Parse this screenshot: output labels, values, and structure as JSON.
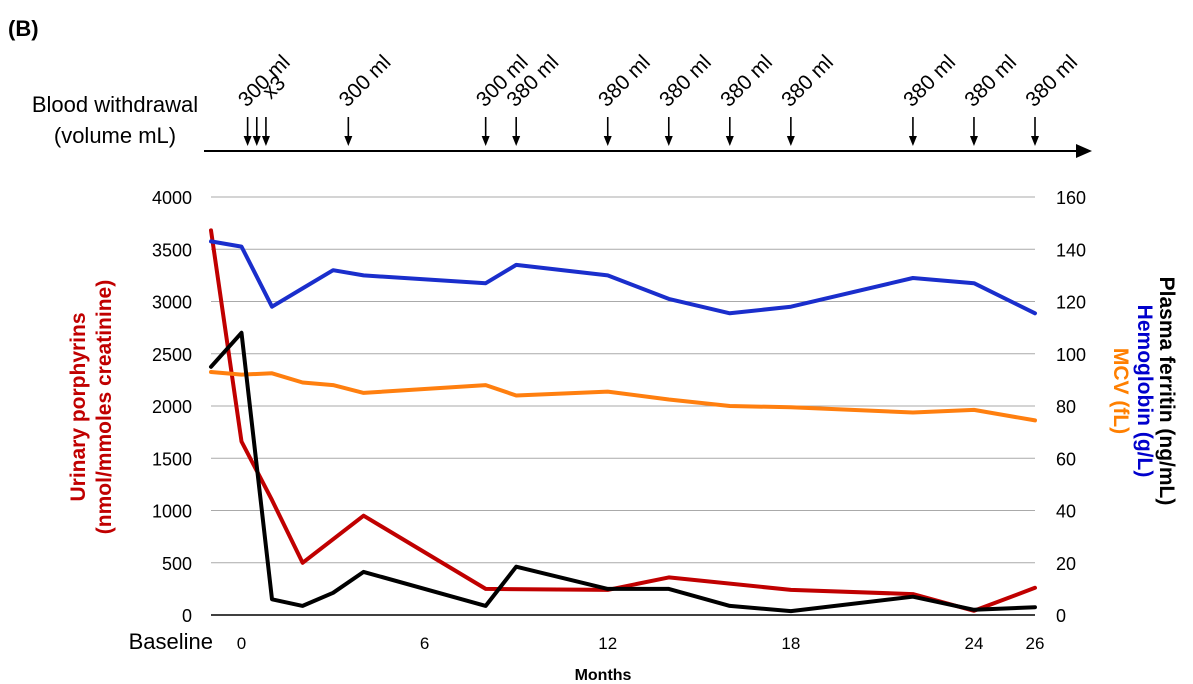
{
  "panel_label": "(B)",
  "withdrawal_header": {
    "line1": "Blood withdrawal",
    "line2": "(volume mL)"
  },
  "withdrawal_events": [
    {
      "month": 0.2,
      "label": "300 ml"
    },
    {
      "month": 0.5,
      "label": ""
    },
    {
      "month": 0.8,
      "label": "x3"
    },
    {
      "month": 3.5,
      "label": "300 ml"
    },
    {
      "month": 8.0,
      "label": "300 ml"
    },
    {
      "month": 9.0,
      "label": "380 ml"
    },
    {
      "month": 12.0,
      "label": "380 ml"
    },
    {
      "month": 14.0,
      "label": "380 ml"
    },
    {
      "month": 16.0,
      "label": "380 ml"
    },
    {
      "month": 18.0,
      "label": "380 ml"
    },
    {
      "month": 22.0,
      "label": "380 ml"
    },
    {
      "month": 24.0,
      "label": "380 ml"
    },
    {
      "month": 26.0,
      "label": "380 ml"
    }
  ],
  "chart_data": {
    "type": "line",
    "xlabel": "Months",
    "x_tick_labels": [
      {
        "x": -1,
        "label": "Baseline"
      },
      {
        "x": 0,
        "label": "0"
      },
      {
        "x": 6,
        "label": "6"
      },
      {
        "x": 12,
        "label": "12"
      },
      {
        "x": 18,
        "label": "18"
      },
      {
        "x": 24,
        "label": "24"
      },
      {
        "x": 26,
        "label": "26"
      }
    ],
    "xlim": [
      -1,
      26
    ],
    "y_left": {
      "label_line1": "Urinary porphyrins",
      "label_line2": "(nmol/mmoles creatinine)",
      "ylim": [
        0,
        4000
      ],
      "ticks": [
        0,
        500,
        1000,
        1500,
        2000,
        2500,
        3000,
        3500,
        4000
      ]
    },
    "y_right": {
      "labels": [
        {
          "text": "Plasma ferritin (ng/mL)",
          "color": "#000000"
        },
        {
          "text": "Hemoglobin (g/L)",
          "color": "#0000cc"
        },
        {
          "text": "MCV (fL)",
          "color": "#ff7f00"
        }
      ],
      "ylim": [
        0,
        160
      ],
      "ticks": [
        0,
        20,
        40,
        60,
        80,
        100,
        120,
        140,
        160
      ]
    },
    "grid": true,
    "series": [
      {
        "name": "Urinary porphyrins",
        "axis": "left",
        "color": "#c00000",
        "points": [
          [
            -1,
            3680
          ],
          [
            0,
            1660
          ],
          [
            1,
            1100
          ],
          [
            2,
            500
          ],
          [
            4,
            950
          ],
          [
            8,
            250
          ],
          [
            12,
            240
          ],
          [
            14,
            360
          ],
          [
            18,
            240
          ],
          [
            22,
            200
          ],
          [
            24,
            40
          ],
          [
            26,
            260
          ]
        ]
      },
      {
        "name": "Hemoglobin",
        "axis": "right",
        "color": "#1a2ecc",
        "points": [
          [
            -1,
            143
          ],
          [
            0,
            141
          ],
          [
            1,
            118
          ],
          [
            2,
            125
          ],
          [
            3,
            132
          ],
          [
            4,
            130
          ],
          [
            8,
            127
          ],
          [
            9,
            134
          ],
          [
            12,
            130
          ],
          [
            14,
            121
          ],
          [
            16,
            115.5
          ],
          [
            18,
            118
          ],
          [
            22,
            129
          ],
          [
            24,
            127
          ],
          [
            26,
            115.5
          ]
        ]
      },
      {
        "name": "MCV",
        "axis": "right",
        "color": "#ff7f0f",
        "points": [
          [
            -1,
            93
          ],
          [
            0,
            92
          ],
          [
            1,
            92.5
          ],
          [
            2,
            89
          ],
          [
            3,
            88
          ],
          [
            4,
            85
          ],
          [
            8,
            88
          ],
          [
            9,
            84
          ],
          [
            12,
            85.5
          ],
          [
            14,
            82.5
          ],
          [
            16,
            80
          ],
          [
            18,
            79.5
          ],
          [
            22,
            77.5
          ],
          [
            24,
            78.5
          ],
          [
            26,
            74.5
          ]
        ]
      },
      {
        "name": "Plasma ferritin",
        "axis": "right",
        "color": "#000000",
        "points": [
          [
            -1,
            95
          ],
          [
            0,
            108
          ],
          [
            1,
            6
          ],
          [
            2,
            3.5
          ],
          [
            3,
            8.5
          ],
          [
            4,
            16.5
          ],
          [
            8,
            3.5
          ],
          [
            9,
            18.5
          ],
          [
            12,
            10
          ],
          [
            14,
            10
          ],
          [
            16,
            3.5
          ],
          [
            18,
            1.5
          ],
          [
            22,
            7
          ],
          [
            24,
            2
          ],
          [
            26,
            3
          ]
        ]
      }
    ]
  },
  "colors": {
    "grid": "#aaaaaa",
    "axis": "#000000",
    "left_label": "#c00000"
  }
}
